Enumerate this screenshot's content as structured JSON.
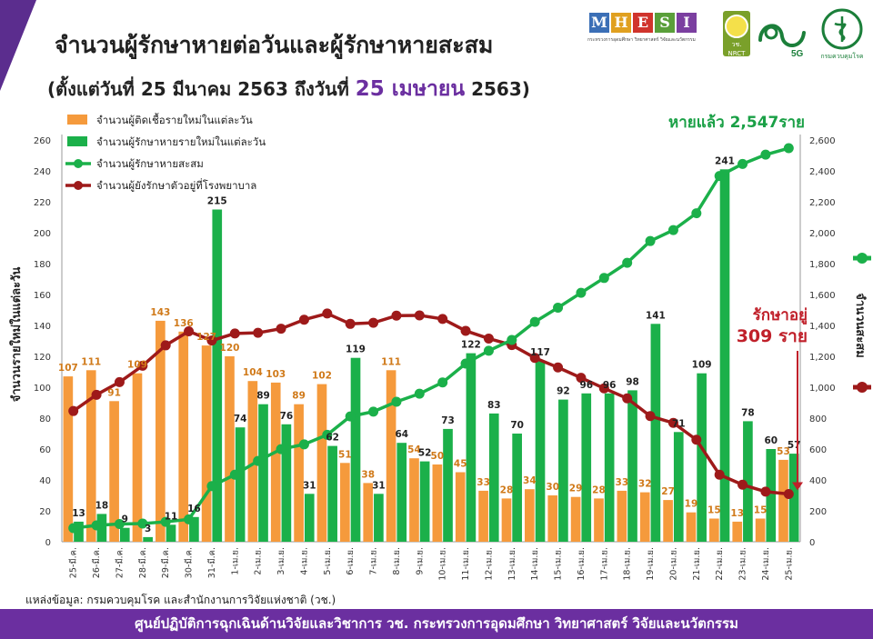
{
  "header": {
    "title": "จำนวนผู้รักษาหายต่อวันและผู้รักษาหายสะสม",
    "subtitle_prefix": "(ตั้งแต่วันที่ 25 มีนาคม 2563 ถึงวันที่",
    "subtitle_highlight": "25 เมษายน",
    "subtitle_suffix": "2563)"
  },
  "logos": {
    "mhesi_letters": [
      "M",
      "H",
      "E",
      "S",
      "I"
    ],
    "mhesi_colors": [
      "#3b6fb6",
      "#e0a020",
      "#d0342c",
      "#5a9f3a",
      "#7b3fa0"
    ],
    "mhesi_sub": "กระทรวงการอุดมศึกษา วิทยาศาสตร์ วิจัยและนวัตกรรม",
    "nrct_label": "วช. NRCT",
    "fiveg_label": "5G",
    "dept_label": "กรมควบคุมโรค"
  },
  "colors": {
    "brand_purple": "#6b2fa0",
    "orange_bar": "#f59a3c",
    "green": "#1bb04a",
    "dark_red": "#9e1a1a",
    "recovered_label_green": "#1aa046",
    "orange_label": "#d07a1a",
    "callout_red": "#c0202a"
  },
  "chart_data": {
    "type": "bar",
    "x": [
      "25-มี.ค.",
      "26-มี.ค.",
      "27-มี.ค.",
      "28-มี.ค.",
      "29-มี.ค.",
      "30-มี.ค.",
      "31-มี.ค.",
      "1-เม.ย.",
      "2-เม.ย.",
      "3-เม.ย.",
      "4-เม.ย.",
      "5-เม.ย.",
      "6-เม.ย.",
      "7-เม.ย.",
      "8-เม.ย.",
      "9-เม.ย.",
      "10-เม.ย.",
      "11-เม.ย.",
      "12-เม.ย.",
      "13-เม.ย.",
      "14-เม.ย.",
      "15-เม.ย.",
      "16-เม.ย.",
      "17-เม.ย.",
      "18-เม.ย.",
      "19-เม.ย.",
      "20-เม.ย.",
      "21-เม.ย.",
      "22-เม.ย.",
      "23-เม.ย.",
      "24-เม.ย.",
      "25-เม.ย."
    ],
    "series": [
      {
        "name": "จำนวนผู้ติดเชื้อรายใหม่ในแต่ละวัน",
        "type": "bar",
        "axis": "left",
        "color": "#f59a3c",
        "values": [
          107,
          111,
          91,
          109,
          143,
          136,
          127,
          120,
          104,
          103,
          89,
          102,
          51,
          38,
          111,
          54,
          50,
          45,
          33,
          28,
          34,
          30,
          29,
          28,
          33,
          32,
          27,
          19,
          15,
          13,
          15,
          53
        ]
      },
      {
        "name": "จำนวนผู้รักษาหายรายใหม่ในแต่ละวัน",
        "type": "bar",
        "axis": "left",
        "color": "#1bb04a",
        "values": [
          13,
          18,
          9,
          3,
          11,
          16,
          215,
          74,
          89,
          76,
          31,
          62,
          119,
          31,
          64,
          52,
          73,
          122,
          83,
          70,
          117,
          92,
          96,
          96,
          98,
          141,
          71,
          109,
          241,
          78,
          60,
          57
        ]
      },
      {
        "name": "จำนวนผู้รักษาหายสะสม",
        "type": "line",
        "axis": "right",
        "color": "#1bb04a",
        "values": [
          88,
          106,
          115,
          118,
          129,
          145,
          360,
          434,
          523,
          599,
          630,
          692,
          811,
          842,
          906,
          958,
          1031,
          1153,
          1236,
          1306,
          1423,
          1515,
          1611,
          1707,
          1805,
          1946,
          2017,
          2126,
          2367,
          2445,
          2505,
          2547
        ]
      },
      {
        "name": "จำนวนผู้ยังรักษาตัวอยู่ที่โรงพยาบาล",
        "type": "line",
        "axis": "right",
        "color": "#9e1a1a",
        "values": [
          846,
          951,
          1033,
          1139,
          1271,
          1362,
          1302,
          1348,
          1352,
          1379,
          1437,
          1477,
          1410,
          1417,
          1463,
          1465,
          1442,
          1365,
          1315,
          1273,
          1190,
          1128,
          1061,
          993,
          928,
          813,
          769,
          660,
          434,
          369,
          324,
          309
        ]
      }
    ],
    "bar_labels_orange": [
      "107",
      "111",
      "91",
      "109",
      "143",
      "136",
      "127",
      "120",
      "104",
      "103",
      "89",
      "102",
      "51",
      "38",
      "111",
      "54",
      "50",
      "45",
      "33",
      "28",
      "34",
      "30",
      "29",
      "28",
      "33",
      "32",
      "27",
      "19",
      "15",
      "13",
      "15",
      "53"
    ],
    "bar_labels_green": [
      "13",
      "18",
      "9",
      "3",
      "11",
      "16",
      "215",
      "74",
      "89",
      "76",
      "31",
      "62",
      "119",
      "31",
      "64",
      "52",
      "73",
      "122",
      "83",
      "70",
      "117",
      "92",
      "96",
      "96",
      "98",
      "141",
      "71",
      "109",
      "241",
      "78",
      "60",
      "57"
    ],
    "left_axis": {
      "label": "จำนวนรายใหม่ในแต่ละวัน",
      "ylim": [
        0,
        260
      ],
      "ticks": [
        "0",
        "20",
        "40",
        "60",
        "80",
        "100",
        "120",
        "140",
        "160",
        "180",
        "200",
        "220",
        "240",
        "260"
      ]
    },
    "right_axis": {
      "label": "จำนวนสะสม",
      "ylim": [
        0,
        2600
      ],
      "ticks": [
        "0",
        "200",
        "400",
        "600",
        "800",
        "1,000",
        "1,200",
        "1,400",
        "1,600",
        "1,800",
        "2,000",
        "2,200",
        "2,400",
        "2,600"
      ]
    },
    "legend": {
      "placement": "top-left",
      "items": [
        {
          "label": "จำนวนผู้ติดเชื้อรายใหม่ในแต่ละวัน",
          "swatch": "bar",
          "color": "#f59a3c"
        },
        {
          "label": "จำนวนผู้รักษาหายรายใหม่ในแต่ละวัน",
          "swatch": "bar",
          "color": "#1bb04a"
        },
        {
          "label": "จำนวนผู้รักษาหายสะสม",
          "swatch": "line",
          "color": "#1bb04a"
        },
        {
          "label": "จำนวนผู้ยังรักษาตัวอยู่ที่โรงพยาบาล",
          "swatch": "line",
          "color": "#9e1a1a"
        }
      ]
    },
    "annotations": {
      "recovered_total": "หายแล้ว 2,547ราย",
      "in_hospital_line1": "รักษาอยู่",
      "in_hospital_line2": "309 ราย"
    },
    "grid": false
  },
  "footer": {
    "source": "แหล่งข้อมูล: กรมควบคุมโรค และสำนักงานการวิจัยแห่งชาติ (วช.)",
    "banner": "ศูนย์ปฏิบัติการฉุกเฉินด้านวิจัยและวิชาการ   วช.   กระทรวงการอุดมศึกษา วิทยาศาสตร์ วิจัยและนวัตกรรม"
  }
}
